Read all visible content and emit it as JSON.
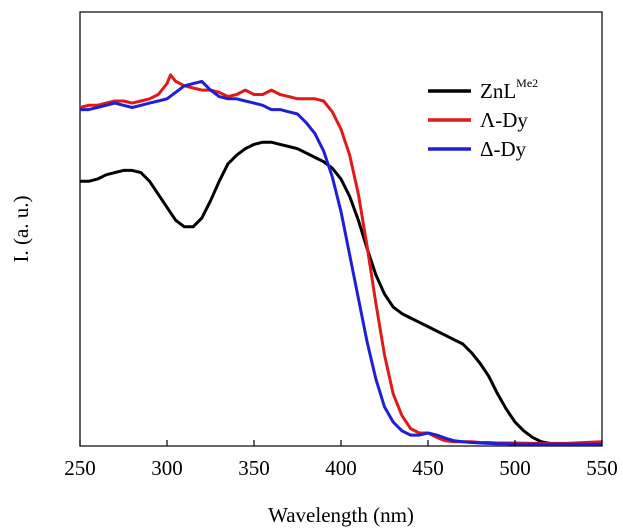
{
  "chart_data": {
    "type": "line",
    "title": "",
    "xlabel": "Wavelength (nm)",
    "ylabel": "I. (a. u.)",
    "xlim": [
      250,
      550
    ],
    "ylim": [
      0,
      1
    ],
    "xticks": [
      "250",
      "300",
      "350",
      "400",
      "450",
      "500",
      "550"
    ],
    "yticks_shown": false,
    "grid": false,
    "legend_position": "top-right",
    "series": [
      {
        "name": "ZnL",
        "name_superscript": "Me2",
        "color": "#000000",
        "x": [
          250,
          255,
          260,
          265,
          270,
          275,
          280,
          285,
          290,
          295,
          300,
          305,
          310,
          315,
          320,
          325,
          330,
          335,
          340,
          345,
          350,
          355,
          360,
          365,
          370,
          375,
          380,
          385,
          390,
          395,
          400,
          405,
          410,
          415,
          420,
          425,
          430,
          435,
          440,
          445,
          450,
          455,
          460,
          465,
          470,
          475,
          480,
          485,
          490,
          495,
          500,
          505,
          510,
          515,
          520,
          525,
          530,
          535,
          540,
          545,
          550
        ],
        "y": [
          0.61,
          0.61,
          0.615,
          0.625,
          0.63,
          0.635,
          0.635,
          0.63,
          0.61,
          0.58,
          0.55,
          0.52,
          0.505,
          0.505,
          0.525,
          0.565,
          0.61,
          0.65,
          0.67,
          0.685,
          0.695,
          0.7,
          0.7,
          0.695,
          0.69,
          0.685,
          0.675,
          0.665,
          0.655,
          0.64,
          0.615,
          0.575,
          0.52,
          0.455,
          0.395,
          0.35,
          0.32,
          0.305,
          0.295,
          0.285,
          0.275,
          0.265,
          0.255,
          0.245,
          0.235,
          0.215,
          0.19,
          0.16,
          0.12,
          0.085,
          0.055,
          0.035,
          0.02,
          0.01,
          0.006,
          0.005,
          0.004,
          0.004,
          0.004,
          0.003,
          0.003
        ]
      },
      {
        "name": "Λ-Dy",
        "color": "#e01919",
        "x": [
          250,
          255,
          260,
          265,
          270,
          275,
          280,
          285,
          290,
          295,
          300,
          302,
          305,
          310,
          315,
          320,
          325,
          330,
          335,
          340,
          345,
          350,
          355,
          360,
          365,
          370,
          375,
          380,
          385,
          390,
          395,
          400,
          405,
          410,
          415,
          420,
          425,
          430,
          435,
          440,
          445,
          450,
          455,
          460,
          465,
          470,
          475,
          480,
          485,
          490,
          495,
          500,
          510,
          520,
          530,
          540,
          550
        ],
        "y": [
          0.78,
          0.785,
          0.785,
          0.79,
          0.795,
          0.795,
          0.79,
          0.795,
          0.8,
          0.81,
          0.835,
          0.855,
          0.84,
          0.83,
          0.825,
          0.82,
          0.82,
          0.815,
          0.805,
          0.81,
          0.82,
          0.81,
          0.81,
          0.82,
          0.81,
          0.805,
          0.8,
          0.8,
          0.8,
          0.795,
          0.77,
          0.73,
          0.67,
          0.58,
          0.46,
          0.33,
          0.21,
          0.12,
          0.07,
          0.04,
          0.03,
          0.03,
          0.02,
          0.012,
          0.01,
          0.01,
          0.01,
          0.008,
          0.008,
          0.007,
          0.007,
          0.007,
          0.006,
          0.006,
          0.006,
          0.008,
          0.01
        ]
      },
      {
        "name": "Δ-Dy",
        "color": "#1f1fd6",
        "x": [
          250,
          255,
          260,
          265,
          270,
          275,
          280,
          285,
          290,
          295,
          300,
          305,
          310,
          315,
          320,
          325,
          330,
          335,
          340,
          345,
          350,
          355,
          360,
          365,
          370,
          375,
          380,
          385,
          390,
          395,
          400,
          405,
          410,
          415,
          420,
          425,
          430,
          435,
          440,
          445,
          450,
          455,
          460,
          465,
          470,
          475,
          480,
          485,
          490,
          495,
          500,
          510,
          520,
          530,
          540,
          550
        ],
        "y": [
          0.775,
          0.775,
          0.78,
          0.785,
          0.79,
          0.785,
          0.78,
          0.785,
          0.79,
          0.795,
          0.8,
          0.815,
          0.83,
          0.835,
          0.84,
          0.82,
          0.805,
          0.8,
          0.8,
          0.795,
          0.79,
          0.785,
          0.775,
          0.775,
          0.77,
          0.765,
          0.745,
          0.72,
          0.68,
          0.62,
          0.54,
          0.44,
          0.34,
          0.24,
          0.155,
          0.09,
          0.055,
          0.035,
          0.025,
          0.025,
          0.03,
          0.025,
          0.018,
          0.012,
          0.01,
          0.008,
          0.007,
          0.006,
          0.005,
          0.005,
          0.004,
          0.004,
          0.004,
          0.004,
          0.004,
          0.004
        ]
      }
    ]
  }
}
